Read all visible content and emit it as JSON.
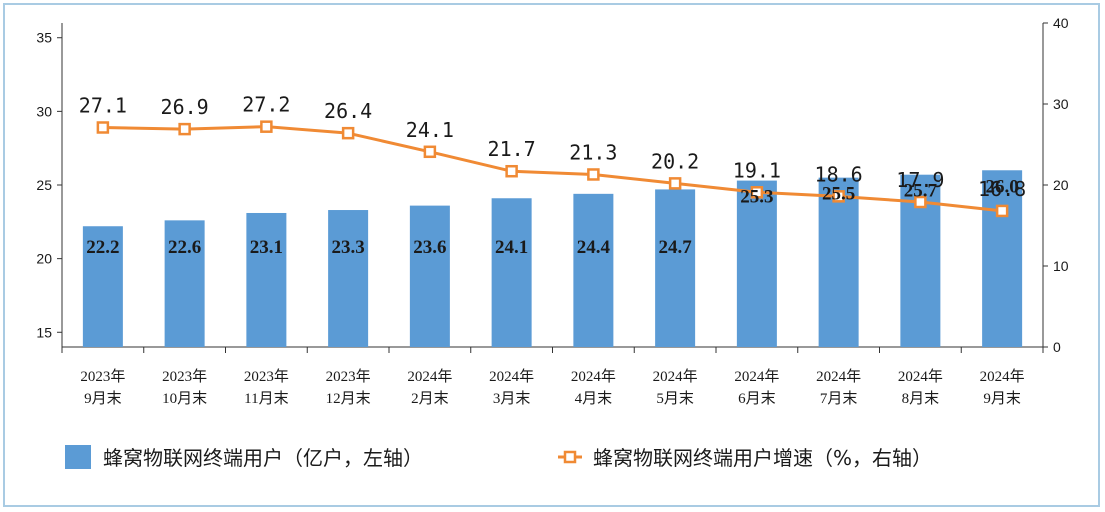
{
  "chart_data": {
    "type": "bar+line",
    "categories": [
      [
        "2023年",
        "9月末"
      ],
      [
        "2023年",
        "10月末"
      ],
      [
        "2023年",
        "11月末"
      ],
      [
        "2023年",
        "12月末"
      ],
      [
        "2024年",
        "2月末"
      ],
      [
        "2024年",
        "3月末"
      ],
      [
        "2024年",
        "4月末"
      ],
      [
        "2024年",
        "5月末"
      ],
      [
        "2024年",
        "6月末"
      ],
      [
        "2024年",
        "7月末"
      ],
      [
        "2024年",
        "8月末"
      ],
      [
        "2024年",
        "9月末"
      ]
    ],
    "series": [
      {
        "name": "蜂窝物联网终端用户（亿户，左轴）",
        "type": "bar",
        "axis": "left",
        "color": "#5b9bd5",
        "values": [
          22.2,
          22.6,
          23.1,
          23.3,
          23.6,
          24.1,
          24.4,
          24.7,
          25.3,
          25.5,
          25.7,
          26.0
        ],
        "labels": [
          "22.2",
          "22.6",
          "23.1",
          "23.3",
          "23.6",
          "24.1",
          "24.4",
          "24.7",
          "25.3",
          "25.5",
          "25.7",
          "26.0"
        ]
      },
      {
        "name": "蜂窝物联网终端用户增速（%，右轴）",
        "type": "line",
        "axis": "right",
        "color": "#f08a34",
        "values": [
          27.1,
          26.9,
          27.2,
          26.4,
          24.1,
          21.7,
          21.3,
          20.2,
          19.1,
          18.6,
          17.9,
          16.8
        ],
        "labels": [
          "27.1",
          "26.9",
          "27.2",
          "26.4",
          "24.1",
          "21.7",
          "21.3",
          "20.2",
          "19.1",
          "18.6",
          "17.9",
          "16.8"
        ]
      }
    ],
    "y_left": {
      "min": 14,
      "max": 36,
      "ticks": [
        "15",
        "20",
        "25",
        "30",
        "35"
      ]
    },
    "y_right": {
      "min": 0,
      "max": 40,
      "ticks": [
        "0",
        "10",
        "20",
        "30",
        "40"
      ]
    },
    "grid": false,
    "legend_position": "bottom"
  }
}
